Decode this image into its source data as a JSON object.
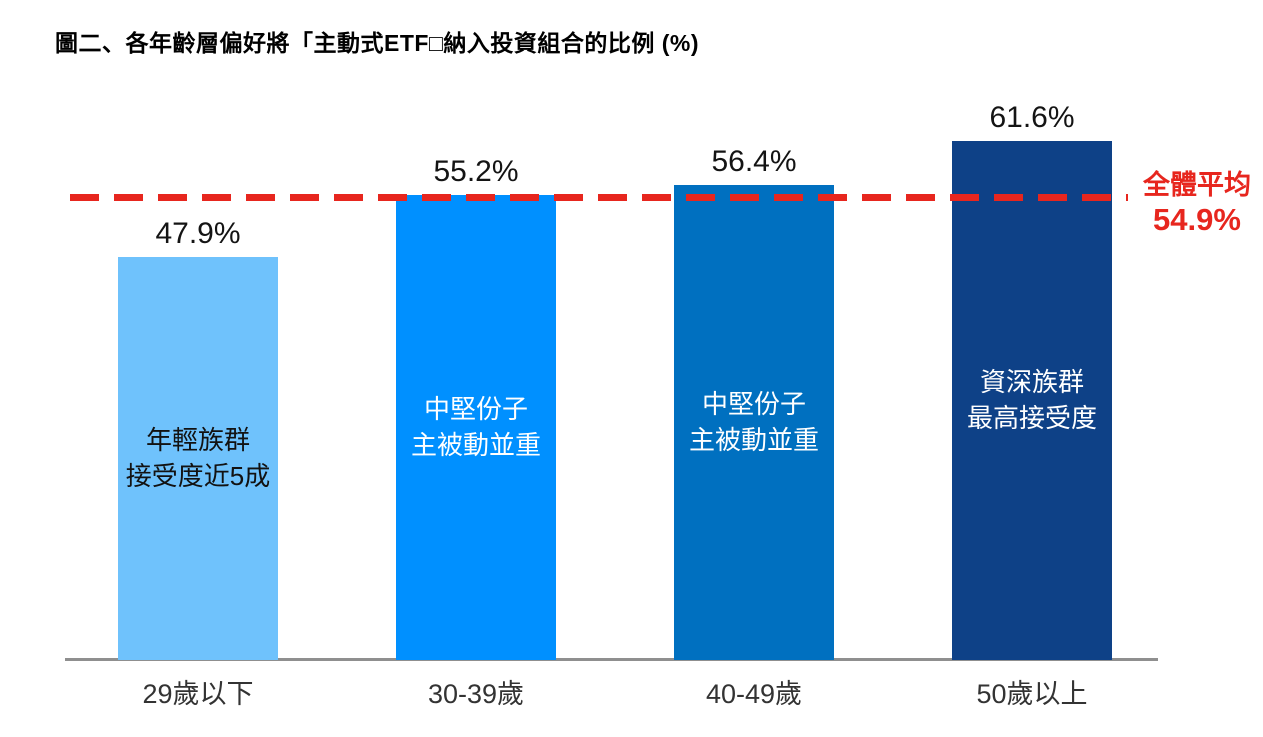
{
  "title": "圖二、各年齡層偏好將「主動式ETF□納入投資組合的比例 (%)",
  "chart_data": {
    "type": "bar",
    "title": "圖二、各年齡層偏好將「主動式ETF□納入投資組合的比例 (%)",
    "categories": [
      "29歲以下",
      "30-39歲",
      "40-49歲",
      "50歲以上"
    ],
    "values": [
      47.9,
      55.2,
      56.4,
      61.6
    ],
    "value_labels": [
      "47.9%",
      "55.2%",
      "56.4%",
      "61.6%"
    ],
    "bar_colors": [
      "#6FC2FC",
      "#0090FF",
      "#0070C0",
      "#0E4187"
    ],
    "bar_text_colors": [
      "#121212",
      "#FFFFFF",
      "#FFFFFF",
      "#FFFFFF"
    ],
    "bar_annotations": [
      [
        "年輕族群",
        "接受度近5成"
      ],
      [
        "中堅份子",
        "主被動並重"
      ],
      [
        "中堅份子",
        "主被動並重"
      ],
      [
        "資深族群",
        "最高接受度"
      ]
    ],
    "average_line": {
      "value": 54.9,
      "label_title": "全體平均",
      "label_value": "54.9%",
      "color": "#E7261E"
    },
    "xlabel": "",
    "ylabel": "",
    "ylim": [
      0,
      69
    ],
    "grid": false,
    "legend": false,
    "axis_color": "#8F8F8F"
  }
}
